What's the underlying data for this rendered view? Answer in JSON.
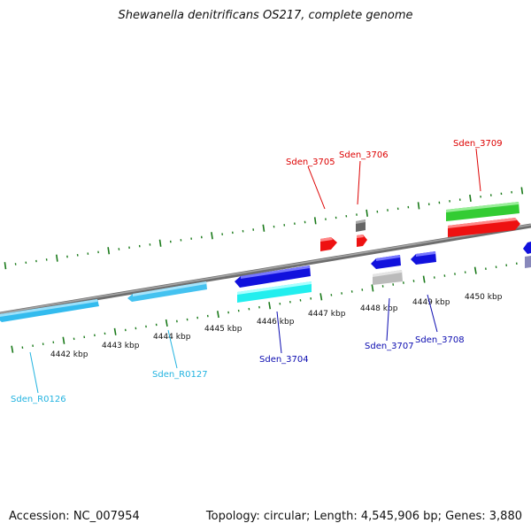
{
  "title": "Shewanella denitrificans OS217, complete genome",
  "footer": {
    "accession": "Accession: NC_007954",
    "summary": "Topology: circular; Length: 4,545,906 bp; Genes: 3,880"
  },
  "scale": {
    "unit": "kbp",
    "ticks": [
      {
        "label": "4442 kbp"
      },
      {
        "label": "4443 kbp"
      },
      {
        "label": "4444 kbp"
      },
      {
        "label": "4445 kbp"
      },
      {
        "label": "4446 kbp"
      },
      {
        "label": "4447 kbp"
      },
      {
        "label": "4448 kbp"
      },
      {
        "label": "4449 kbp"
      },
      {
        "label": "4450 kbp"
      }
    ]
  },
  "features": [
    {
      "id": "Sden_R0126",
      "label": "Sden_R0126",
      "strand": "reverse",
      "color": "#33bbee",
      "label_color": "#22b3e0"
    },
    {
      "id": "Sden_R0127",
      "label": "Sden_R0127",
      "strand": "reverse",
      "color": "#44c2f0",
      "label_color": "#22b3e0"
    },
    {
      "id": "Sden_3704",
      "label": "Sden_3704",
      "strand": "reverse",
      "color": "#1111dd",
      "label_color": "#0b0bb0"
    },
    {
      "id": "Sden_3705",
      "label": "Sden_3705",
      "strand": "forward",
      "color": "#ee1111",
      "label_color": "#dd0000"
    },
    {
      "id": "Sden_3706",
      "label": "Sden_3706",
      "strand": "forward",
      "color": "#ee1111",
      "label_color": "#dd0000"
    },
    {
      "id": "Sden_3707",
      "label": "Sden_3707",
      "strand": "reverse",
      "color": "#1111dd",
      "label_color": "#0b0bb0"
    },
    {
      "id": "Sden_3708",
      "label": "Sden_3708",
      "strand": "reverse",
      "color": "#1111dd",
      "label_color": "#0b0bb0"
    },
    {
      "id": "Sden_3709",
      "label": "Sden_3709",
      "strand": "forward",
      "color": "#ee1111",
      "label_color": "#dd0000"
    }
  ],
  "colors": {
    "backbone": "#8a8a8a",
    "tick": "#1a7a1a",
    "orf_cyan": "#22eeee",
    "orf_green": "#33cc33",
    "gray_block": "#666666",
    "light_gray_block": "#bbbbbb"
  }
}
